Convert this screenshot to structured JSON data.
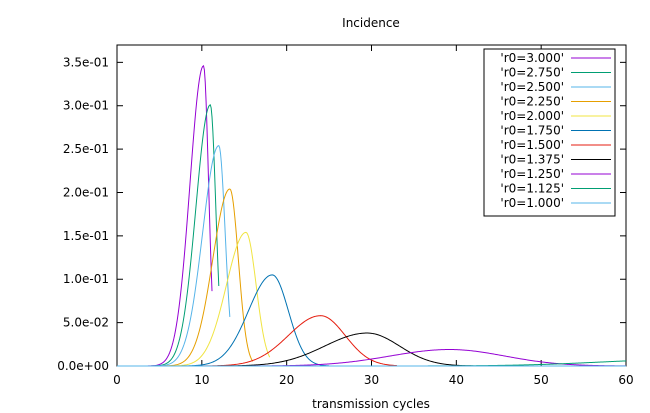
{
  "chart_data": {
    "type": "line",
    "title": "Incidence",
    "xlabel": "transmission cycles",
    "ylabel": "",
    "xlim": [
      0,
      60
    ],
    "ylim": [
      0,
      0.37
    ],
    "x_ticks": [
      0,
      10,
      20,
      30,
      40,
      50,
      60
    ],
    "x_tick_labels": [
      "0",
      "10",
      "20",
      "30",
      "40",
      "50",
      "60"
    ],
    "y_ticks": [
      0,
      0.05,
      0.1,
      0.15,
      0.2,
      0.25,
      0.3,
      0.35
    ],
    "y_tick_labels": [
      "0.0e+00",
      "5.0e-02",
      "1.0e-01",
      "1.5e-01",
      "2.0e-01",
      "2.5e-01",
      "3.0e-01",
      "3.5e-01"
    ],
    "grid": false,
    "legend_position": "top-right",
    "series": [
      {
        "name": "'r0=3.000'",
        "color": "#9400d3",
        "peak_x": 10.2,
        "peak_y": 0.346,
        "sigma_left": 1.6,
        "sigma_right": 0.6,
        "x_end": 11.2
      },
      {
        "name": "'r0=2.750'",
        "color": "#009e73",
        "peak_x": 11.0,
        "peak_y": 0.301,
        "sigma_left": 1.7,
        "sigma_right": 0.65,
        "x_end": 12.0
      },
      {
        "name": "'r0=2.500'",
        "color": "#56b4e9",
        "peak_x": 12.0,
        "peak_y": 0.254,
        "sigma_left": 1.9,
        "sigma_right": 0.75,
        "x_end": 13.3
      },
      {
        "name": "'r0=2.250'",
        "color": "#e69f00",
        "peak_x": 13.3,
        "peak_y": 0.204,
        "sigma_left": 2.0,
        "sigma_right": 1.0,
        "x_end": 16.0
      },
      {
        "name": "'r0=2.000'",
        "color": "#f0e442",
        "peak_x": 15.2,
        "peak_y": 0.154,
        "sigma_left": 2.3,
        "sigma_right": 1.2,
        "x_end": 18.0
      },
      {
        "name": "'r0=1.750'",
        "color": "#0072b2",
        "peak_x": 18.3,
        "peak_y": 0.105,
        "sigma_left": 2.8,
        "sigma_right": 1.9,
        "x_end": 25.0
      },
      {
        "name": "'r0=1.500'",
        "color": "#e51e10",
        "peak_x": 24.0,
        "peak_y": 0.058,
        "sigma_left": 3.8,
        "sigma_right": 2.9,
        "x_end": 33.0
      },
      {
        "name": "'r0=1.375'",
        "color": "#000000",
        "peak_x": 29.5,
        "peak_y": 0.038,
        "sigma_left": 5.0,
        "sigma_right": 3.8,
        "x_end": 42.0
      },
      {
        "name": "'r0=1.250'",
        "color": "#9400d3",
        "peak_x": 39.2,
        "peak_y": 0.019,
        "sigma_left": 7.0,
        "sigma_right": 6.5,
        "x_end": 60.0
      },
      {
        "name": "'r0=1.125'",
        "color": "#009e73",
        "peak_x": 67.0,
        "peak_y": 0.0075,
        "sigma_left": 10.0,
        "sigma_right": 10.0,
        "x_end": 60.0
      },
      {
        "name": "'r0=1.000'",
        "color": "#56b4e9",
        "peak_x": 100.0,
        "peak_y": 0.002,
        "sigma_left": 15.0,
        "sigma_right": 15.0,
        "x_end": 60.0
      }
    ]
  }
}
